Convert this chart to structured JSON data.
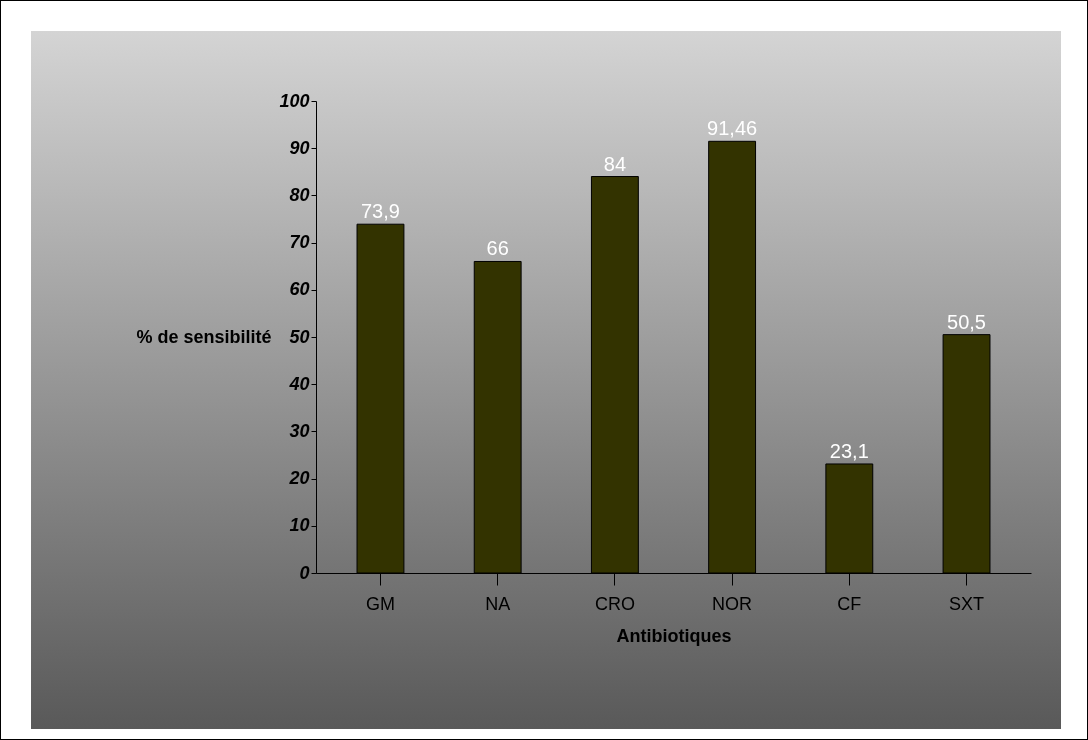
{
  "chart_data": {
    "type": "bar",
    "xlabel": "Antibiotiques",
    "ylabel": "% de sensibilité",
    "categories": [
      "GM",
      "NA",
      "CRO",
      "NOR",
      "CF",
      "SXT"
    ],
    "values": [
      73.9,
      66,
      84,
      91.46,
      23.1,
      50.5
    ],
    "value_labels": [
      "73,9",
      "66",
      "84",
      "91,46",
      "23,1",
      "50,5"
    ],
    "color": "#333300",
    "ylim": [
      0,
      100
    ],
    "yticks": [
      0,
      10,
      20,
      30,
      40,
      50,
      60,
      70,
      80,
      90,
      100
    ],
    "grid": false
  }
}
